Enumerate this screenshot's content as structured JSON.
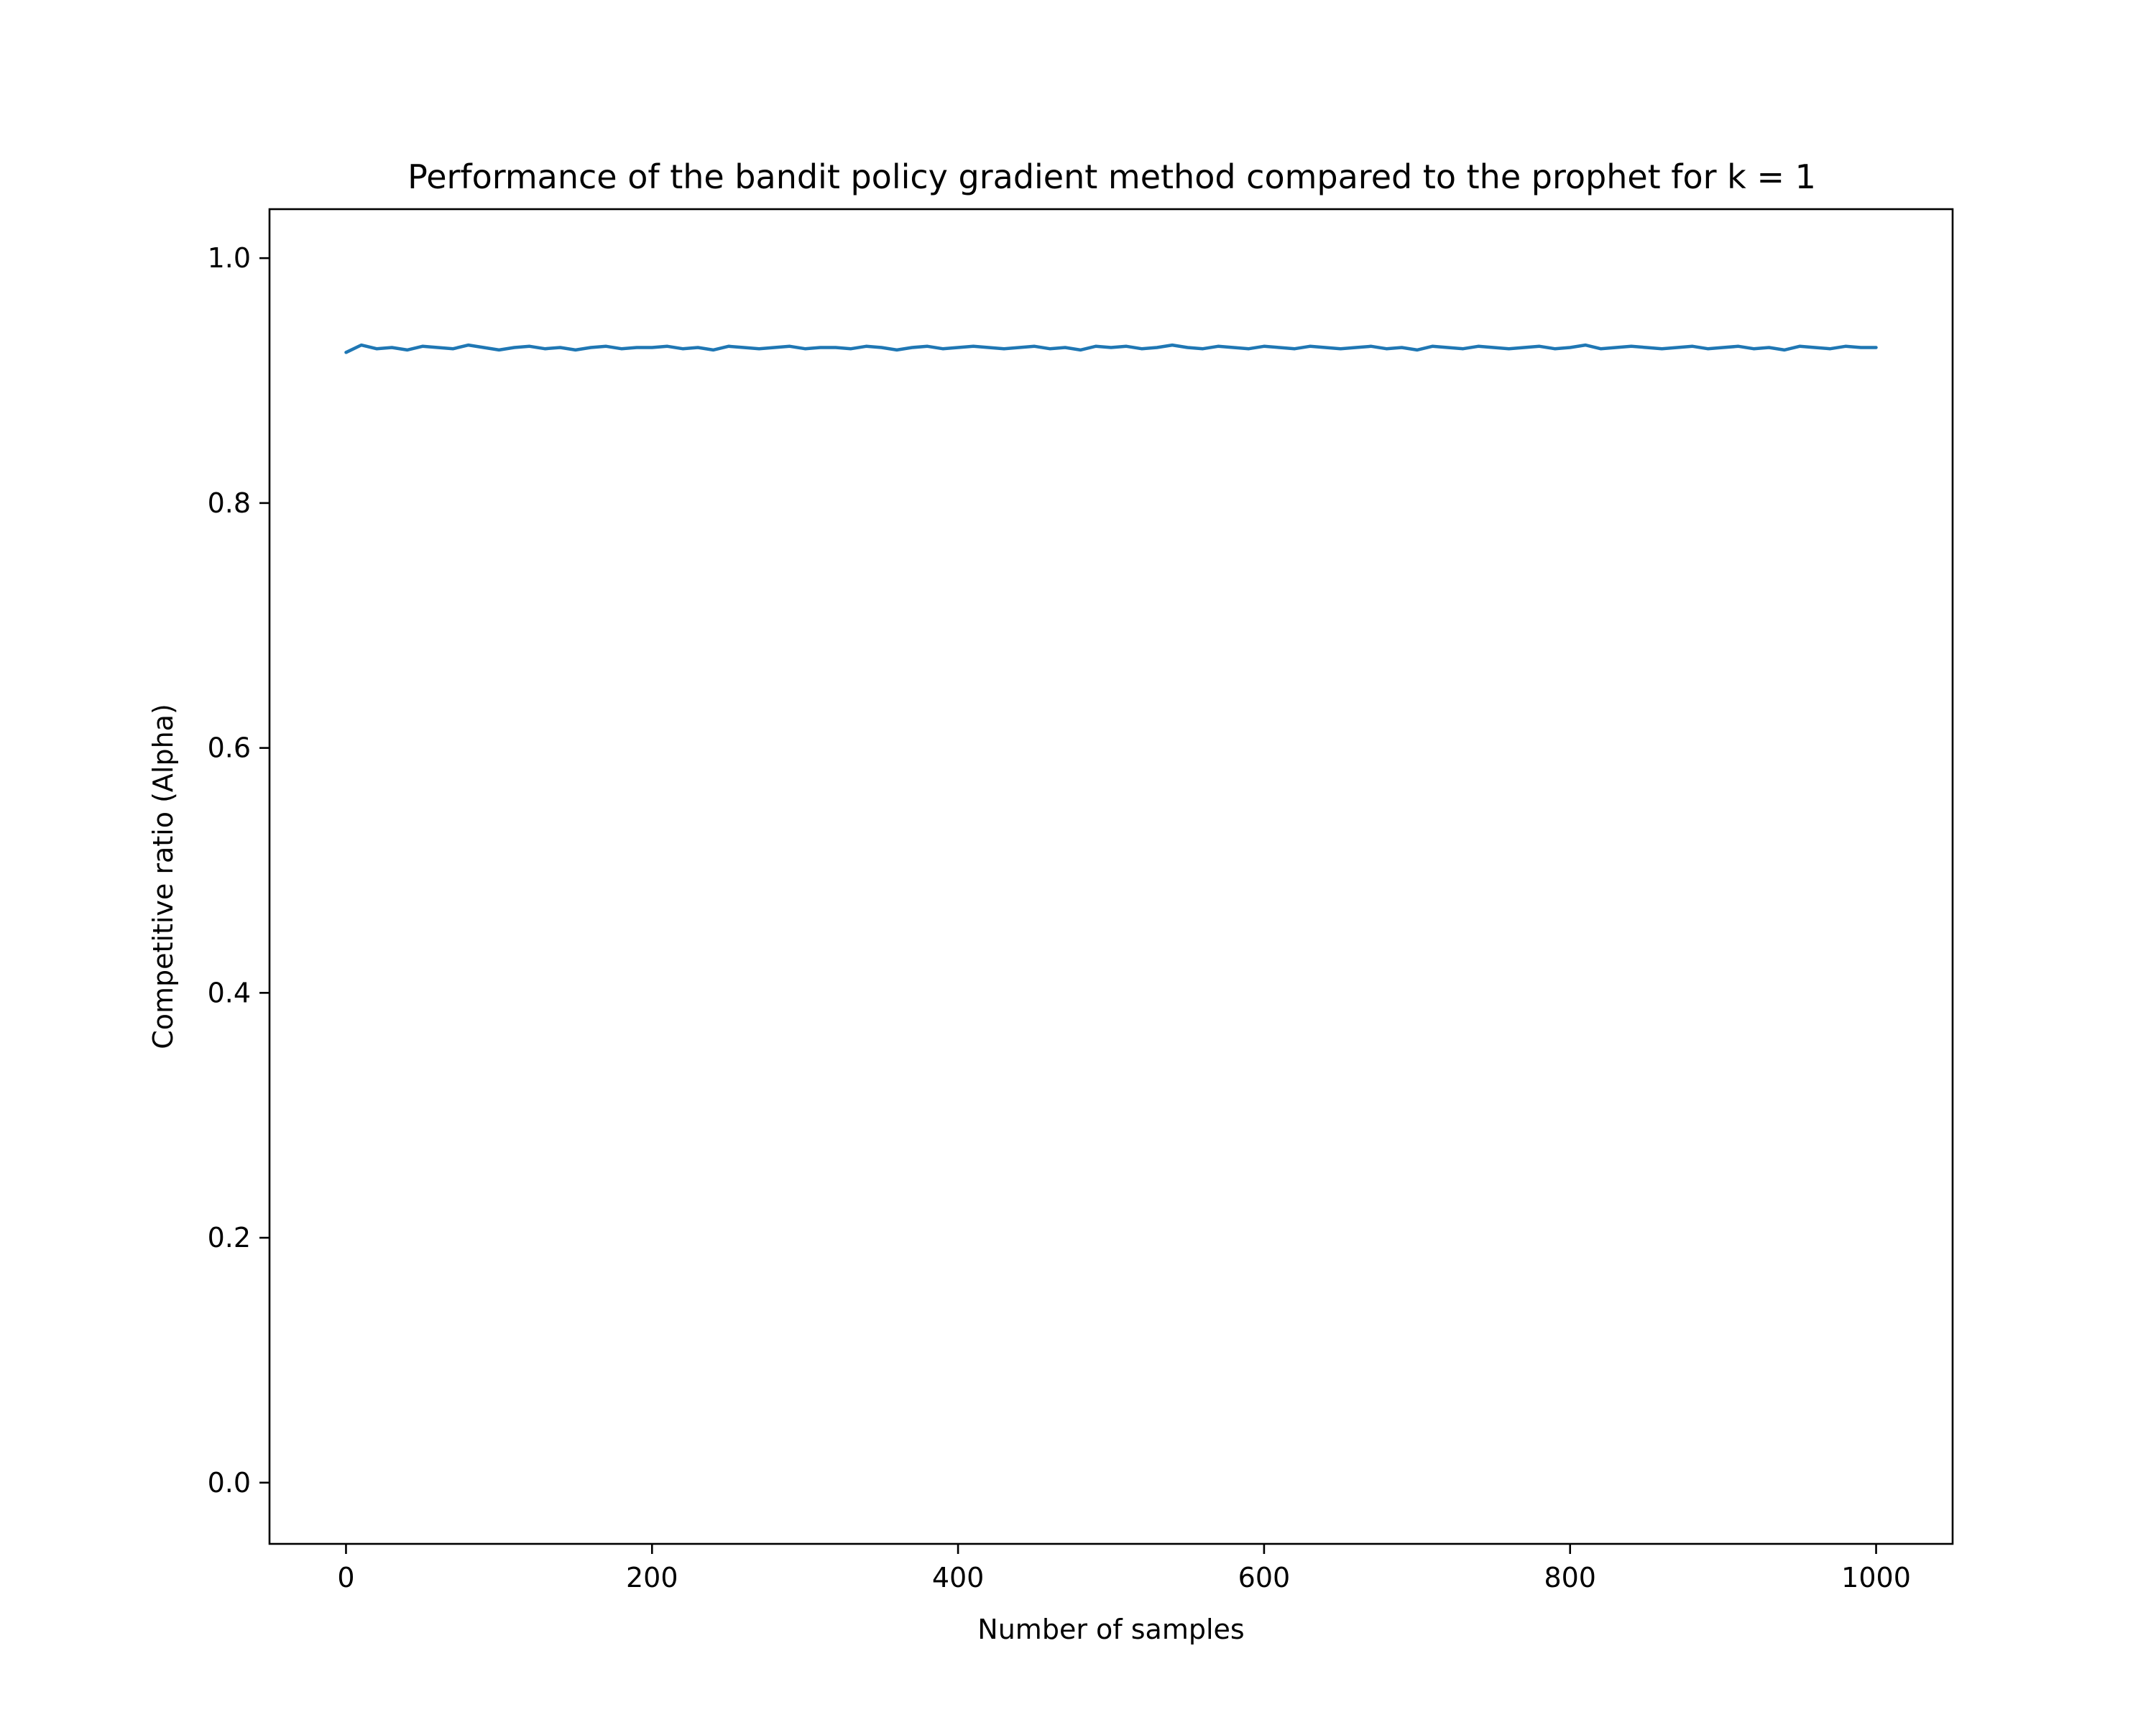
{
  "chart_data": {
    "type": "line",
    "title": "Performance of the bandit policy gradient method compared to the prophet for k = 1",
    "xlabel": "Number of samples",
    "ylabel": "Competitive ratio (Alpha)",
    "xlim": [
      -50,
      1050
    ],
    "ylim": [
      -0.05,
      1.04
    ],
    "xticks": [
      0,
      200,
      400,
      600,
      800,
      1000
    ],
    "yticks": [
      0.0,
      0.2,
      0.4,
      0.6,
      0.8,
      1.0
    ],
    "xtick_labels": [
      "0",
      "200",
      "400",
      "600",
      "800",
      "1000"
    ],
    "ytick_labels": [
      "0.0",
      "0.2",
      "0.4",
      "0.6",
      "0.8",
      "1.0"
    ],
    "grid": false,
    "series": [
      {
        "color": "#1f77b4",
        "x_start": 0,
        "x_step": 10,
        "y": [
          0.923,
          0.929,
          0.926,
          0.927,
          0.925,
          0.928,
          0.927,
          0.926,
          0.929,
          0.927,
          0.925,
          0.927,
          0.928,
          0.926,
          0.927,
          0.925,
          0.927,
          0.928,
          0.926,
          0.927,
          0.927,
          0.928,
          0.926,
          0.927,
          0.925,
          0.928,
          0.927,
          0.926,
          0.927,
          0.928,
          0.926,
          0.927,
          0.927,
          0.926,
          0.928,
          0.927,
          0.925,
          0.927,
          0.928,
          0.926,
          0.927,
          0.928,
          0.927,
          0.926,
          0.927,
          0.928,
          0.926,
          0.927,
          0.925,
          0.928,
          0.927,
          0.928,
          0.926,
          0.927,
          0.929,
          0.927,
          0.926,
          0.928,
          0.927,
          0.926,
          0.928,
          0.927,
          0.926,
          0.928,
          0.927,
          0.926,
          0.927,
          0.928,
          0.926,
          0.927,
          0.925,
          0.928,
          0.927,
          0.926,
          0.928,
          0.927,
          0.926,
          0.927,
          0.928,
          0.926,
          0.927,
          0.929,
          0.926,
          0.927,
          0.928,
          0.927,
          0.926,
          0.927,
          0.928,
          0.926,
          0.927,
          0.928,
          0.926,
          0.927,
          0.925,
          0.928,
          0.927,
          0.926,
          0.928,
          0.927,
          0.927
        ]
      }
    ]
  }
}
